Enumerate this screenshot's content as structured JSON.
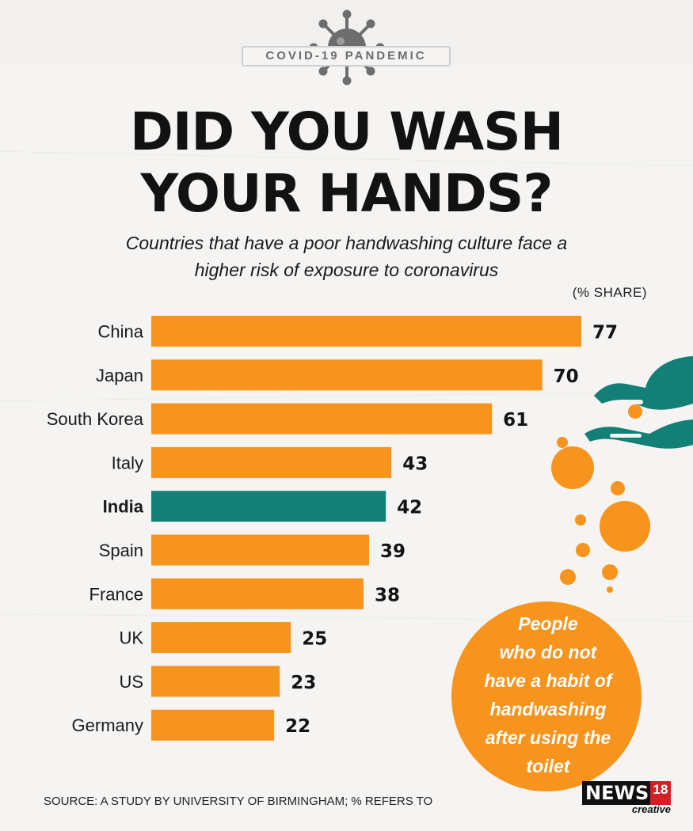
{
  "header": {
    "banner": "COVID-19 PANDEMIC",
    "title_line1": "DID YOU WASH",
    "title_line2": "YOUR HANDS?",
    "subtitle_line1": "Countries that have a poor handwashing culture face a",
    "subtitle_line2": "higher risk of exposure to coronavirus",
    "unit": "(% SHARE)"
  },
  "chart_data": {
    "type": "bar",
    "orientation": "horizontal",
    "categories": [
      "China",
      "Japan",
      "South Korea",
      "Italy",
      "India",
      "Spain",
      "France",
      "UK",
      "US",
      "Germany"
    ],
    "values": [
      77,
      70,
      61,
      43,
      42,
      39,
      38,
      25,
      23,
      22
    ],
    "highlight": "India",
    "colors": {
      "bar": "#f7941d",
      "highlight": "#128077"
    },
    "ylabel": "(% SHARE)"
  },
  "callout": {
    "lines": [
      "People",
      "who do not",
      "have a habit of",
      "handwashing",
      "after using the",
      "toilet"
    ]
  },
  "footer": {
    "source": "SOURCE: A STUDY BY UNIVERSITY OF BIRMINGHAM; % REFERS TO",
    "logo_main": "NEWS",
    "logo_number": "18",
    "logo_sub": "creative"
  },
  "icons": [
    "virus-icon",
    "washing-hands-icon",
    "soap-bubbles-icon"
  ]
}
